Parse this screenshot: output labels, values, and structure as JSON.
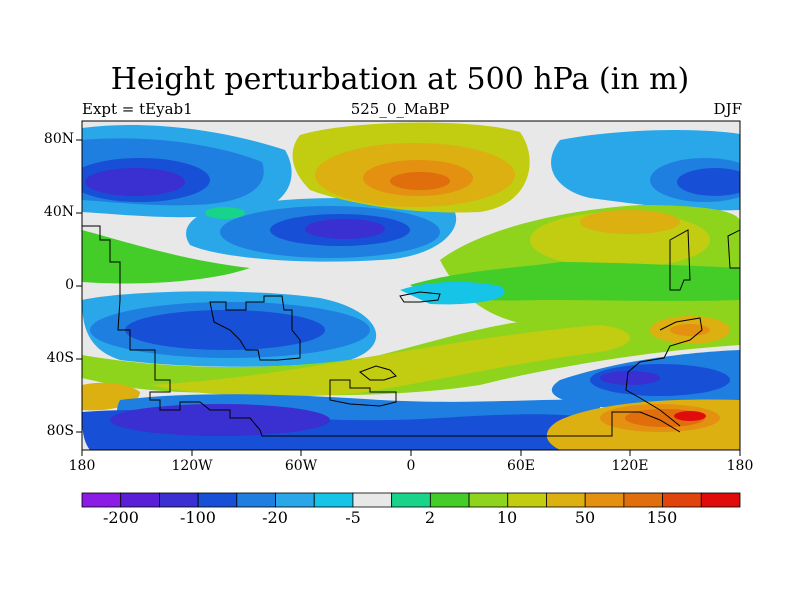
{
  "chart_data": {
    "type": "heatmap",
    "title": "Height perturbation at 500 hPa (in m)",
    "subtitle_left": "Expt = tEyab1",
    "subtitle_center": "525_0_MaBP",
    "subtitle_right": "DJF",
    "x_ticks": [
      "180",
      "120W",
      "60W",
      "0",
      "60E",
      "120E",
      "180"
    ],
    "y_ticks": [
      "80N",
      "40N",
      "0",
      "40S",
      "80S"
    ],
    "xlim": [
      -180,
      180
    ],
    "ylim": [
      -90,
      90
    ],
    "colorbar": {
      "labels": [
        "-200",
        "-100",
        "-20",
        "-5",
        "2",
        "10",
        "50",
        "150"
      ],
      "colors": [
        "#8c1be6",
        "#5a1ed6",
        "#3a2fd0",
        "#1750d6",
        "#1f7fe0",
        "#2aa7e8",
        "#16c4e8",
        "#e8e8e8",
        "#18d48a",
        "#44cc28",
        "#8ed41c",
        "#c2cc10",
        "#dcb010",
        "#e49010",
        "#e06e0c",
        "#e0440c",
        "#e00c0c"
      ]
    },
    "regions": [
      {
        "name": "north-pacific-low",
        "lon": -165,
        "lat": 62,
        "rx": 28,
        "ry": 16,
        "level": 2
      },
      {
        "name": "north-atlantic-low",
        "lon": -45,
        "lat": 30,
        "rx": 35,
        "ry": 10,
        "level": 2
      },
      {
        "name": "north-polar-high",
        "lon": 0,
        "lat": 62,
        "rx": 22,
        "ry": 12,
        "level": 15
      },
      {
        "name": "east-asia-low",
        "lon": 160,
        "lat": 62,
        "rx": 20,
        "ry": 14,
        "level": 2
      },
      {
        "name": "south-pacific-low",
        "lon": -100,
        "lat": -22,
        "rx": 38,
        "ry": 12,
        "level": 2
      },
      {
        "name": "south-ocean-low",
        "lon": -120,
        "lat": -62,
        "rx": 40,
        "ry": 12,
        "level": 3
      },
      {
        "name": "antarctic-high",
        "lon": 140,
        "lat": -72,
        "rx": 30,
        "ry": 10,
        "level": 14
      }
    ]
  }
}
